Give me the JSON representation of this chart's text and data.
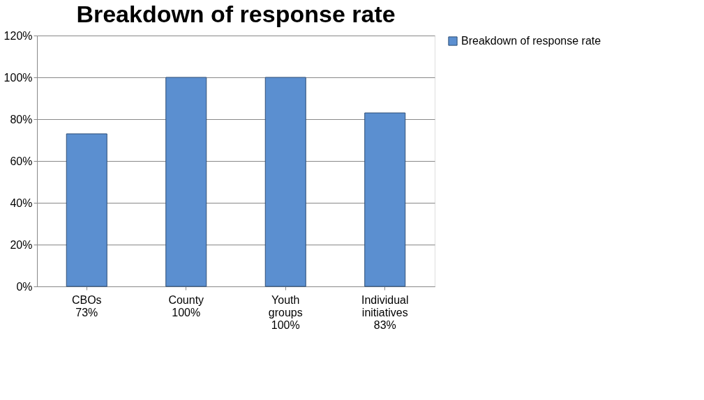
{
  "chart_data": {
    "type": "bar",
    "title": "Breakdown of response rate",
    "categories": [
      "CBOs 73%",
      "County 100%",
      "Youth groups 100%",
      "Individual initiatives 83%"
    ],
    "series": [
      {
        "name": "Breakdown of response rate",
        "color": "#5b8fd0",
        "values": [
          73,
          100,
          100,
          83
        ]
      }
    ],
    "ylim": [
      0,
      120
    ],
    "yticks": [
      {
        "value": 0,
        "label": "0%"
      },
      {
        "value": 20,
        "label": "20%"
      },
      {
        "value": 40,
        "label": "40%"
      },
      {
        "value": 60,
        "label": "60%"
      },
      {
        "value": 80,
        "label": "80%"
      },
      {
        "value": 100,
        "label": "100%"
      },
      {
        "value": 120,
        "label": "120%"
      }
    ],
    "grid": "y",
    "legend": "right"
  }
}
